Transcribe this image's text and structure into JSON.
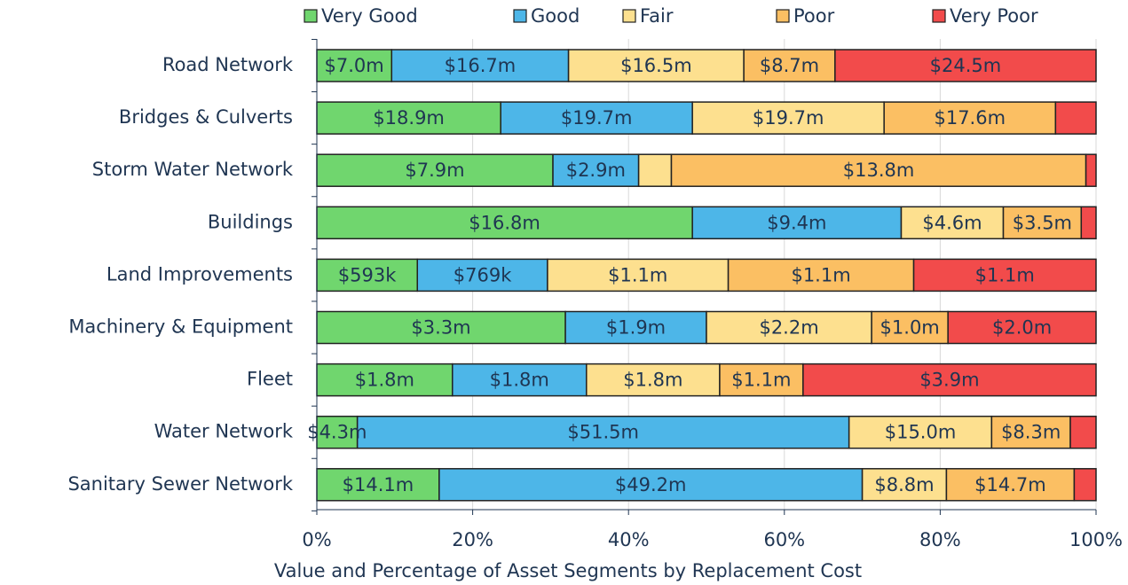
{
  "chart_data": {
    "type": "stacked-bar-horizontal",
    "x_label": "Value and Percentage of Asset Segments by Replacement Cost",
    "categories": [
      "Road Network",
      "Bridges & Culverts",
      "Storm Water Network",
      "Buildings",
      "Land Improvements",
      "Machinery & Equipment",
      "Fleet",
      "Water Network",
      "Sanitary Sewer Network"
    ],
    "series": [
      {
        "name": "Very Good",
        "color": "#70d66e",
        "values": [
          9.6,
          23.6,
          30.3,
          48.2,
          12.9,
          31.9,
          17.4,
          5.2,
          15.7
        ],
        "value_labels": [
          "$7.0m",
          "$18.9m",
          "$7.9m",
          "$16.8m",
          "$593k",
          "$3.3m",
          "$1.8m",
          "$4.3m",
          "$14.1m"
        ]
      },
      {
        "name": "Good",
        "color": "#4db6e8",
        "values": [
          22.7,
          24.6,
          11.0,
          26.8,
          16.7,
          18.1,
          17.2,
          63.1,
          54.3
        ],
        "value_labels": [
          "$16.7m",
          "$19.7m",
          "$2.9m",
          "$9.4m",
          "$769k",
          "$1.9m",
          "$1.8m",
          "$51.5m",
          "$49.2m"
        ]
      },
      {
        "name": "Fair",
        "color": "#fde08f",
        "values": [
          22.5,
          24.6,
          4.2,
          13.1,
          23.2,
          21.2,
          17.1,
          18.3,
          10.8
        ],
        "value_labels": [
          "$16.5m",
          "$19.7m",
          null,
          "$4.6m",
          "$1.1m",
          "$2.2m",
          "$1.8m",
          "$15.0m",
          "$8.8m"
        ]
      },
      {
        "name": "Poor",
        "color": "#fbbf63",
        "values": [
          11.7,
          22.0,
          53.2,
          10.0,
          23.8,
          9.8,
          10.7,
          10.1,
          16.4
        ],
        "value_labels": [
          "$8.7m",
          "$17.6m",
          "$13.8m",
          "$3.5m",
          "$1.1m",
          "$1.0m",
          "$1.1m",
          "$8.3m",
          "$14.7m"
        ]
      },
      {
        "name": "Very Poor",
        "color": "#f24b4b",
        "values": [
          33.5,
          5.2,
          1.3,
          1.9,
          23.4,
          19.0,
          37.6,
          3.3,
          2.8
        ],
        "value_labels": [
          "$24.5m",
          null,
          null,
          null,
          "$1.1m",
          "$2.0m",
          "$3.9m",
          null,
          null
        ]
      }
    ],
    "xlim": [
      0,
      100
    ],
    "xticks": [
      {
        "value": 0,
        "label": "0%"
      },
      {
        "value": 20,
        "label": "20%"
      },
      {
        "value": 40,
        "label": "40%"
      },
      {
        "value": 60,
        "label": "60%"
      },
      {
        "value": 80,
        "label": "80%"
      },
      {
        "value": 100,
        "label": "100%"
      }
    ],
    "grid": true,
    "legend": "top"
  }
}
